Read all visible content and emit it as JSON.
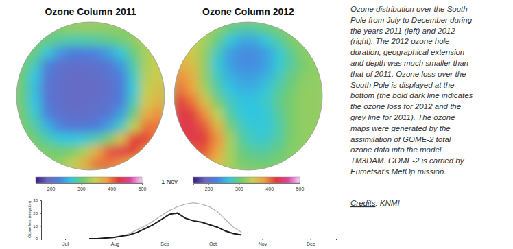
{
  "maps": [
    {
      "title": "Ozone Column 2011",
      "cells": [
        [
          null,
          null,
          310,
          315,
          320,
          320,
          320,
          320,
          320,
          315,
          null,
          null
        ],
        [
          null,
          310,
          300,
          290,
          285,
          285,
          290,
          295,
          305,
          320,
          330,
          null
        ],
        [
          310,
          300,
          270,
          240,
          225,
          225,
          230,
          245,
          270,
          300,
          330,
          340
        ],
        [
          305,
          280,
          230,
          205,
          200,
          200,
          205,
          215,
          240,
          285,
          330,
          345
        ],
        [
          300,
          265,
          215,
          200,
          195,
          195,
          200,
          205,
          225,
          275,
          335,
          350
        ],
        [
          300,
          260,
          210,
          200,
          195,
          195,
          195,
          200,
          220,
          270,
          340,
          360
        ],
        [
          300,
          265,
          215,
          200,
          195,
          195,
          200,
          205,
          225,
          280,
          350,
          370
        ],
        [
          305,
          275,
          230,
          205,
          200,
          200,
          205,
          215,
          245,
          300,
          370,
          390
        ],
        [
          310,
          290,
          255,
          230,
          215,
          215,
          225,
          245,
          280,
          340,
          400,
          400
        ],
        [
          315,
          305,
          285,
          270,
          265,
          270,
          285,
          310,
          360,
          420,
          420,
          390
        ],
        [
          null,
          315,
          310,
          305,
          310,
          330,
          370,
          410,
          430,
          420,
          390,
          null
        ],
        [
          null,
          null,
          315,
          320,
          340,
          370,
          400,
          400,
          390,
          360,
          null,
          null
        ]
      ]
    },
    {
      "title": "Ozone Column 2012",
      "cells": [
        [
          null,
          null,
          330,
          320,
          300,
          290,
          290,
          300,
          310,
          320,
          null,
          null
        ],
        [
          null,
          340,
          330,
          300,
          270,
          250,
          250,
          270,
          290,
          310,
          320,
          null
        ],
        [
          360,
          350,
          320,
          280,
          245,
          235,
          235,
          245,
          270,
          295,
          315,
          320
        ],
        [
          370,
          360,
          320,
          270,
          245,
          235,
          235,
          245,
          270,
          290,
          310,
          320
        ],
        [
          390,
          370,
          320,
          280,
          255,
          245,
          245,
          255,
          280,
          300,
          315,
          320
        ],
        [
          400,
          380,
          330,
          290,
          265,
          255,
          255,
          270,
          290,
          305,
          320,
          320
        ],
        [
          420,
          400,
          360,
          310,
          280,
          265,
          265,
          275,
          295,
          310,
          320,
          320
        ],
        [
          430,
          420,
          390,
          340,
          290,
          270,
          265,
          270,
          290,
          310,
          320,
          320
        ],
        [
          430,
          430,
          410,
          370,
          310,
          280,
          270,
          270,
          285,
          310,
          320,
          320
        ],
        [
          420,
          430,
          420,
          390,
          330,
          290,
          275,
          275,
          290,
          310,
          320,
          320
        ],
        [
          null,
          410,
          410,
          380,
          330,
          300,
          290,
          290,
          300,
          315,
          320,
          null
        ],
        [
          null,
          null,
          390,
          360,
          330,
          310,
          305,
          305,
          310,
          315,
          null,
          null
        ]
      ]
    }
  ],
  "colorbar": {
    "range": [
      150,
      500
    ],
    "ticks": [
      200,
      300,
      400,
      500
    ]
  },
  "date": "1 Nov",
  "chart_data": {
    "type": "line",
    "y_label": "Ozone loss (megaton)",
    "x": [
      30,
      35,
      40,
      45,
      50,
      55,
      60,
      65,
      70,
      75,
      80,
      85,
      90,
      95,
      100,
      105,
      110,
      115,
      120,
      125
    ],
    "series": [
      {
        "color": "#b4b4b4",
        "values": [
          0,
          0,
          0.5,
          1,
          2,
          4,
          7,
          10,
          14,
          18,
          22,
          25,
          27,
          28,
          27,
          25,
          21,
          15,
          9,
          5
        ]
      },
      {
        "color": "#1a1a1a",
        "values": [
          0,
          0,
          0.5,
          1,
          2,
          3,
          5,
          8,
          11,
          15,
          19,
          20,
          16,
          14,
          13,
          11,
          9,
          6,
          4,
          3
        ]
      }
    ],
    "xlim": [
      0,
      184
    ],
    "xticks": [
      {
        "value": 15,
        "label": "Jul"
      },
      {
        "value": 46,
        "label": "Aug"
      },
      {
        "value": 77,
        "label": "Sep"
      },
      {
        "value": 107,
        "label": "Oct"
      },
      {
        "value": 138,
        "label": "Nov"
      },
      {
        "value": 168,
        "label": "Dec"
      }
    ],
    "ylim": [
      0,
      30
    ],
    "yticks": [
      0,
      10,
      20,
      30
    ]
  },
  "caption": {
    "lines": [
      "Ozone distribution over the South",
      "Pole from July to December during",
      "the years 2011 (left) and 2012",
      "(right). The 2012 ozone hole",
      "duration, geographical extension",
      "and depth was much smaller than",
      "that of 2011. Ozone loss over the",
      "South Pole is displayed at the",
      "bottom (the bold dark line indicates",
      "the ozone loss for 2012 and the",
      "grey line for 2011). The ozone",
      "maps were generated by the",
      "assimilation of GOME-2 total",
      "ozone data into the model",
      "TM3DAM. GOME-2 is carried by",
      "Eumetsat's MetOp mission."
    ],
    "credits_label": "Credits",
    "credits_text": ": KNMI"
  }
}
